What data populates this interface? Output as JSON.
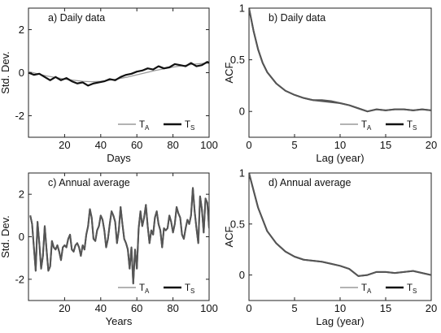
{
  "colors": {
    "T_A": "#9a9a9a",
    "T_S": "#111111",
    "frame": "#222222"
  },
  "chart_data": [
    {
      "id": "a",
      "type": "line",
      "title": "a) Daily data",
      "xlabel": "Days",
      "ylabel": "Std. Dev.",
      "xlim": [
        0,
        100
      ],
      "ylim": [
        -3,
        3
      ],
      "xticks": [
        20,
        40,
        60,
        80,
        100
      ],
      "yticks": [
        -2,
        0,
        2
      ],
      "grid": false,
      "legend": "bottom-right",
      "series": [
        {
          "name": "T_A",
          "x": [
            0,
            5,
            10,
            15,
            20,
            25,
            30,
            35,
            40,
            45,
            50,
            55,
            60,
            65,
            70,
            75,
            80,
            85,
            90,
            95,
            100
          ],
          "values": [
            0.05,
            -0.05,
            -0.15,
            -0.22,
            -0.3,
            -0.35,
            -0.4,
            -0.42,
            -0.4,
            -0.35,
            -0.28,
            -0.2,
            -0.1,
            0.0,
            0.1,
            0.18,
            0.26,
            0.32,
            0.38,
            0.42,
            0.45
          ]
        },
        {
          "name": "T_S",
          "x": [
            0,
            3,
            6,
            9,
            12,
            15,
            18,
            21,
            24,
            27,
            30,
            33,
            36,
            39,
            42,
            45,
            48,
            51,
            54,
            57,
            60,
            63,
            66,
            69,
            72,
            75,
            78,
            81,
            84,
            87,
            90,
            93,
            96,
            99,
            100
          ],
          "values": [
            0.0,
            -0.1,
            -0.05,
            -0.2,
            -0.35,
            -0.2,
            -0.35,
            -0.25,
            -0.4,
            -0.5,
            -0.45,
            -0.6,
            -0.5,
            -0.45,
            -0.4,
            -0.3,
            -0.35,
            -0.2,
            -0.1,
            -0.05,
            0.05,
            0.1,
            0.2,
            0.15,
            0.3,
            0.2,
            0.25,
            0.4,
            0.35,
            0.3,
            0.45,
            0.3,
            0.35,
            0.5,
            0.45
          ]
        }
      ]
    },
    {
      "id": "b",
      "type": "line",
      "title": "b) Daily data",
      "xlabel": "Lag (year)",
      "ylabel": "ACF",
      "xlim": [
        0,
        20
      ],
      "ylim": [
        -0.25,
        1
      ],
      "xticks": [
        0,
        5,
        10,
        15,
        20
      ],
      "yticks": [
        0,
        0.5,
        1
      ],
      "grid": false,
      "legend": "bottom-right",
      "series": [
        {
          "name": "T_A",
          "x": [
            0,
            0.5,
            1,
            1.5,
            2,
            3,
            4,
            5,
            6,
            7,
            8,
            9,
            10,
            11,
            12,
            13,
            14,
            15,
            16,
            17,
            18,
            19,
            20
          ],
          "values": [
            1.0,
            0.78,
            0.6,
            0.47,
            0.38,
            0.27,
            0.2,
            0.16,
            0.13,
            0.11,
            0.1,
            0.09,
            0.08,
            0.06,
            0.03,
            0.0,
            0.02,
            0.01,
            0.02,
            0.02,
            0.01,
            0.02,
            0.01
          ]
        },
        {
          "name": "T_S",
          "x": [
            0,
            0.5,
            1,
            1.5,
            2,
            3,
            4,
            5,
            6,
            7,
            8,
            9,
            10,
            11,
            12,
            13,
            14,
            15,
            16,
            17,
            18,
            19,
            20
          ],
          "values": [
            1.0,
            0.78,
            0.6,
            0.47,
            0.38,
            0.27,
            0.2,
            0.16,
            0.13,
            0.11,
            0.11,
            0.1,
            0.08,
            0.06,
            0.03,
            0.0,
            0.02,
            0.01,
            0.02,
            0.02,
            0.01,
            0.02,
            0.01
          ]
        }
      ]
    },
    {
      "id": "c",
      "type": "line",
      "title": "c) Annual average",
      "xlabel": "Years",
      "ylabel": "Std. Dev.",
      "xlim": [
        0,
        100
      ],
      "ylim": [
        -3,
        3
      ],
      "xticks": [
        20,
        40,
        60,
        80,
        100
      ],
      "yticks": [
        -2,
        0,
        2
      ],
      "grid": false,
      "legend": "bottom-right",
      "series": [
        {
          "name": "T_A",
          "x": [
            1,
            2,
            3,
            4,
            5,
            6,
            7,
            8,
            9,
            10,
            11,
            12,
            13,
            14,
            15,
            16,
            17,
            18,
            19,
            20,
            21,
            22,
            23,
            24,
            25,
            26,
            27,
            28,
            29,
            30,
            31,
            32,
            33,
            34,
            35,
            36,
            37,
            38,
            39,
            40,
            41,
            42,
            43,
            44,
            45,
            46,
            47,
            48,
            49,
            50,
            51,
            52,
            53,
            54,
            55,
            56,
            57,
            58,
            59,
            60,
            61,
            62,
            63,
            64,
            65,
            66,
            67,
            68,
            69,
            70,
            71,
            72,
            73,
            74,
            75,
            76,
            77,
            78,
            79,
            80,
            81,
            82,
            83,
            84,
            85,
            86,
            87,
            88,
            89,
            90,
            91,
            92,
            93,
            94,
            95,
            96,
            97,
            98,
            99,
            100
          ],
          "values": [
            1.0,
            0.6,
            -0.5,
            -1.6,
            0.7,
            -0.3,
            -1.5,
            -0.9,
            0.5,
            -0.6,
            -1.6,
            -1.4,
            -0.2,
            -0.5,
            -0.6,
            -0.4,
            -0.7,
            -1.1,
            -0.5,
            -0.4,
            -0.5,
            -0.1,
            0.1,
            -0.6,
            -0.7,
            -0.4,
            -0.3,
            -0.5,
            -0.9,
            -0.4,
            -0.6,
            0.1,
            0.5,
            1.3,
            0.9,
            -0.1,
            -0.2,
            0.3,
            0.5,
            1.0,
            0.8,
            0.3,
            -0.5,
            -0.1,
            0.6,
            1.2,
            1.0,
            0.7,
            -0.3,
            0.3,
            1.4,
            0.6,
            -0.1,
            -0.3,
            -0.6,
            -1.5,
            -0.5,
            -2.2,
            -0.6,
            -1.5,
            0.4,
            1.2,
            0.5,
            0.9,
            1.5,
            0.5,
            -0.3,
            0.3,
            0.1,
            0.9,
            1.2,
            0.6,
            0.3,
            -0.5,
            0.4,
            0.3,
            0.4,
            1.0,
            0.7,
            0.2,
            0.6,
            1.4,
            1.1,
            0.9,
            0.1,
            -0.1,
            0.4,
            0.8,
            0.6,
            1.0,
            2.3,
            1.2,
            0.4,
            -0.3,
            1.9,
            1.3,
            0.2,
            1.8,
            1.6,
            0.4
          ]
        },
        {
          "name": "T_S",
          "x": [
            1,
            2,
            3,
            4,
            5,
            6,
            7,
            8,
            9,
            10,
            11,
            12,
            13,
            14,
            15,
            16,
            17,
            18,
            19,
            20,
            21,
            22,
            23,
            24,
            25,
            26,
            27,
            28,
            29,
            30,
            31,
            32,
            33,
            34,
            35,
            36,
            37,
            38,
            39,
            40,
            41,
            42,
            43,
            44,
            45,
            46,
            47,
            48,
            49,
            50,
            51,
            52,
            53,
            54,
            55,
            56,
            57,
            58,
            59,
            60,
            61,
            62,
            63,
            64,
            65,
            66,
            67,
            68,
            69,
            70,
            71,
            72,
            73,
            74,
            75,
            76,
            77,
            78,
            79,
            80,
            81,
            82,
            83,
            84,
            85,
            86,
            87,
            88,
            89,
            90,
            91,
            92,
            93,
            94,
            95,
            96,
            97,
            98,
            99,
            100
          ],
          "values": [
            1.0,
            0.6,
            -0.5,
            -1.6,
            0.7,
            -0.3,
            -1.5,
            -0.9,
            0.5,
            -0.6,
            -1.6,
            -1.4,
            -0.2,
            -0.5,
            -0.6,
            -0.4,
            -0.7,
            -1.1,
            -0.5,
            -0.4,
            -0.5,
            -0.1,
            0.1,
            -0.6,
            -0.7,
            -0.4,
            -0.3,
            -0.5,
            -0.9,
            -0.4,
            -0.6,
            0.1,
            0.5,
            1.3,
            0.9,
            -0.1,
            -0.2,
            0.3,
            0.5,
            1.0,
            0.8,
            0.3,
            -0.5,
            -0.1,
            0.6,
            1.2,
            1.0,
            0.7,
            -0.3,
            0.3,
            1.4,
            0.6,
            -0.1,
            -0.3,
            -0.6,
            -1.5,
            -0.5,
            -2.2,
            -0.6,
            -1.5,
            0.4,
            1.2,
            0.5,
            0.9,
            1.5,
            0.5,
            -0.3,
            0.3,
            0.1,
            0.9,
            1.2,
            0.6,
            0.3,
            -0.5,
            0.4,
            0.3,
            0.4,
            1.0,
            0.7,
            0.2,
            0.6,
            1.4,
            1.1,
            0.9,
            0.1,
            -0.1,
            0.4,
            0.8,
            0.6,
            1.0,
            2.3,
            1.2,
            0.4,
            -0.3,
            1.9,
            1.3,
            0.2,
            1.8,
            1.6,
            0.4
          ]
        }
      ]
    },
    {
      "id": "d",
      "type": "line",
      "title": "d) Annual average",
      "xlabel": "Lag (year)",
      "ylabel": "ACF",
      "xlim": [
        0,
        20
      ],
      "ylim": [
        -0.25,
        1
      ],
      "xticks": [
        0,
        5,
        10,
        15,
        20
      ],
      "yticks": [
        0,
        0.5,
        1
      ],
      "grid": false,
      "legend": "bottom-right",
      "series": [
        {
          "name": "T_A",
          "x": [
            0,
            1,
            2,
            3,
            4,
            5,
            6,
            7,
            8,
            9,
            10,
            11,
            12,
            13,
            14,
            15,
            16,
            17,
            18,
            19,
            20
          ],
          "values": [
            1.0,
            0.66,
            0.43,
            0.31,
            0.23,
            0.18,
            0.15,
            0.14,
            0.13,
            0.11,
            0.09,
            0.06,
            -0.01,
            0.0,
            0.03,
            0.03,
            0.02,
            0.03,
            0.04,
            0.02,
            0.0
          ]
        },
        {
          "name": "T_S",
          "x": [
            0,
            1,
            2,
            3,
            4,
            5,
            6,
            7,
            8,
            9,
            10,
            11,
            12,
            13,
            14,
            15,
            16,
            17,
            18,
            19,
            20
          ],
          "values": [
            1.0,
            0.66,
            0.43,
            0.31,
            0.23,
            0.18,
            0.15,
            0.14,
            0.13,
            0.11,
            0.09,
            0.06,
            -0.01,
            0.0,
            0.03,
            0.03,
            0.02,
            0.03,
            0.04,
            0.02,
            0.0
          ]
        }
      ]
    }
  ]
}
